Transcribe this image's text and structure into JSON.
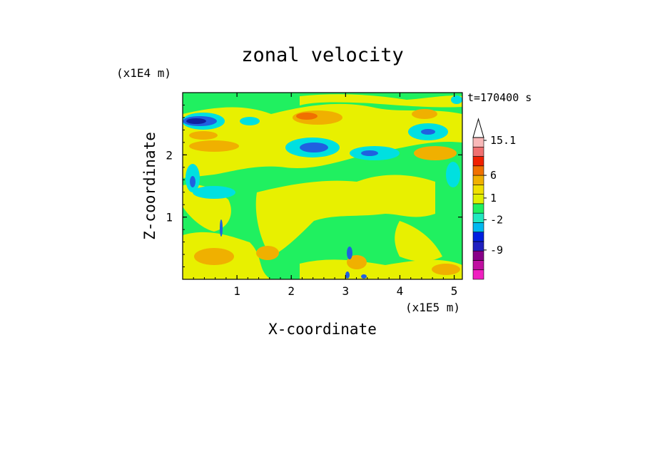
{
  "chart_data": {
    "type": "heatmap",
    "title": "zonal velocity",
    "time_label": "t=170400 s",
    "xlabel": "X-coordinate",
    "ylabel": "Z-coordinate",
    "x_unit": "(x1E5 m)",
    "y_unit": "(x1E4 m)",
    "xlim": [
      0,
      5.15
    ],
    "ylim": [
      0,
      3.0
    ],
    "x_ticks": [
      1,
      2,
      3,
      4,
      5
    ],
    "y_ticks": [
      1,
      2
    ],
    "colorbar": {
      "labels": [
        "15.1",
        "6",
        "1",
        "-2",
        "-9"
      ],
      "levels": [
        -15,
        -12,
        -9,
        -6,
        -4,
        -2,
        -1,
        0,
        1,
        2,
        4,
        6,
        9,
        12,
        15.1
      ],
      "colors": [
        "#f020c0",
        "#c010a0",
        "#880088",
        "#2020c0",
        "#0020e0",
        "#00b8f0",
        "#20e8c0",
        "#20f060",
        "#e0f000",
        "#f0e000",
        "#f0b000",
        "#f07000",
        "#f02000",
        "#f07070",
        "#f8b8b8"
      ],
      "extend": "max"
    },
    "field_description_colors": {
      "background": "#20f060",
      "warm": "#f0f000",
      "orange": "#f0b000",
      "strong": "#f07000",
      "cool": "#00e0e0",
      "blue": "#2060e0",
      "dark": "#1020a0"
    }
  }
}
